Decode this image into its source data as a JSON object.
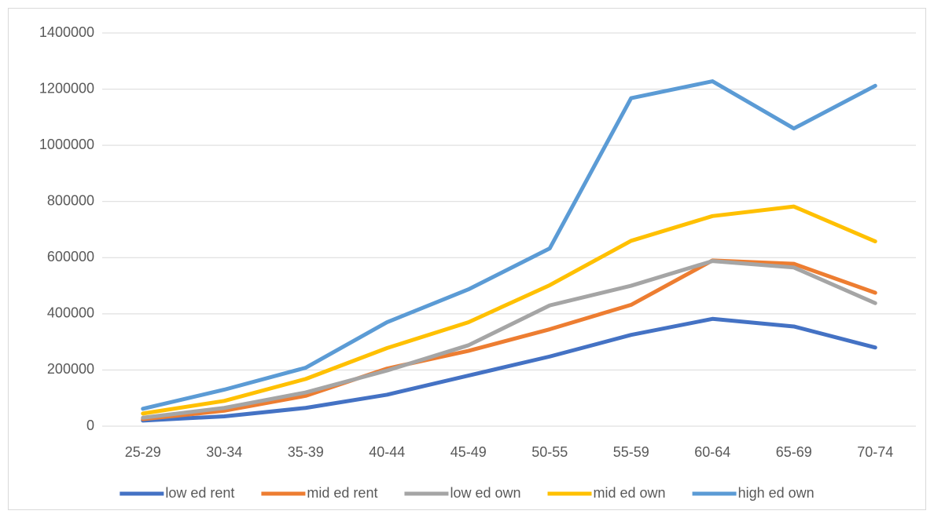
{
  "chart_data": {
    "type": "line",
    "categories": [
      "25-29",
      "30-34",
      "35-39",
      "40-44",
      "45-49",
      "50-55",
      "55-59",
      "60-64",
      "65-69",
      "70-74"
    ],
    "series": [
      {
        "name": "low ed rent",
        "color": "#4472c4",
        "values": [
          20000,
          35000,
          65000,
          112000,
          180000,
          248000,
          325000,
          382000,
          355000,
          280000
        ]
      },
      {
        "name": "mid ed rent",
        "color": "#ed7d31",
        "values": [
          25000,
          55000,
          108000,
          205000,
          268000,
          345000,
          432000,
          590000,
          578000,
          475000
        ]
      },
      {
        "name": "low ed own",
        "color": "#a5a5a5",
        "values": [
          30000,
          65000,
          120000,
          198000,
          288000,
          430000,
          500000,
          588000,
          565000,
          438000
        ]
      },
      {
        "name": "mid ed own",
        "color": "#ffc000",
        "values": [
          45000,
          90000,
          168000,
          278000,
          370000,
          502000,
          660000,
          748000,
          782000,
          658000
        ]
      },
      {
        "name": "high ed own",
        "color": "#5b9bd5",
        "values": [
          62000,
          130000,
          208000,
          370000,
          487000,
          633000,
          1168000,
          1228000,
          1060000,
          1212000
        ]
      }
    ],
    "ylim": [
      0,
      1400000
    ],
    "yticks": [
      0,
      200000,
      400000,
      600000,
      800000,
      1000000,
      1200000,
      1400000
    ],
    "grid": true,
    "legend": "bottom"
  }
}
